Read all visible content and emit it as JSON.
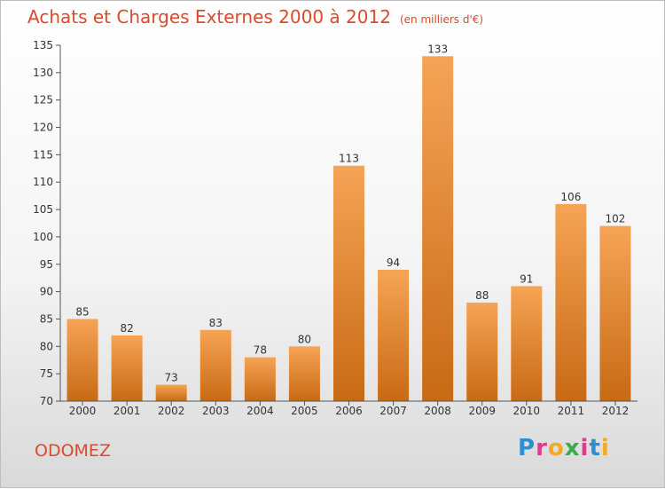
{
  "header": {
    "title": "Achats et Charges Externes 2000 à 2012",
    "subtitle": "(en milliers d'€)"
  },
  "footer": {
    "town": "ODOMEZ",
    "logo": {
      "letters": [
        "P",
        "r",
        "o",
        "x",
        "i",
        "t",
        "i"
      ],
      "colors": [
        "#2b8fd6",
        "#e23a8b",
        "#f7a81b",
        "#3aab49",
        "#e23a8b",
        "#2b8fd6",
        "#f7a81b"
      ]
    }
  },
  "colors": {
    "bar_top": "#f5a455",
    "bar_bottom": "#c86a14",
    "title": "#d94a2f",
    "grid": "#cccccc"
  },
  "chart_data": {
    "type": "bar",
    "title": "Achats et Charges Externes 2000 à 2012",
    "subtitle": "(en milliers d'€)",
    "xlabel": "",
    "ylabel": "",
    "categories": [
      "2000",
      "2001",
      "2002",
      "2003",
      "2004",
      "2005",
      "2006",
      "2007",
      "2008",
      "2009",
      "2010",
      "2011",
      "2012"
    ],
    "values": [
      85,
      82,
      73,
      83,
      78,
      80,
      113,
      94,
      133,
      88,
      91,
      106,
      102
    ],
    "ylim": [
      70,
      135
    ],
    "yticks": [
      70,
      75,
      80,
      85,
      90,
      95,
      100,
      105,
      110,
      115,
      120,
      125,
      130,
      135
    ],
    "grid": false,
    "data_labels": true
  }
}
